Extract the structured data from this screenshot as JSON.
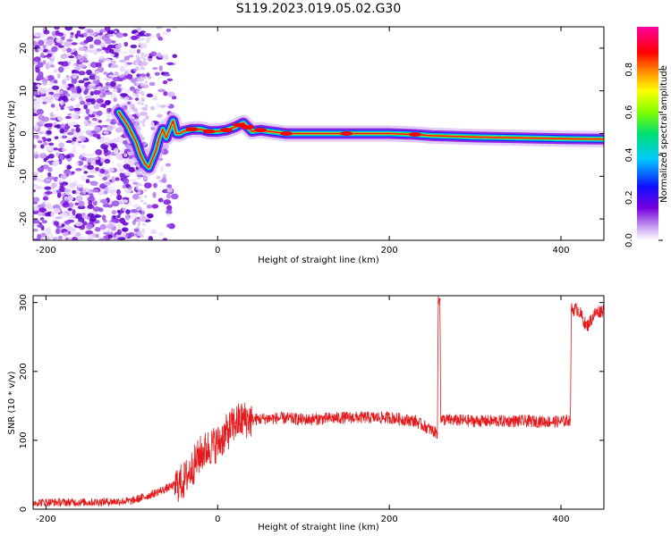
{
  "figure_title": "S119.2023.019.05.02.G30",
  "chart_data": [
    {
      "type": "heatmap",
      "title": "",
      "xlabel": "Height of straight line (km)",
      "ylabel": "Frequency (Hz)",
      "xlim": [
        -215,
        450
      ],
      "ylim": [
        -25,
        25
      ],
      "x_ticks": [
        "-200",
        "0",
        "200",
        "400"
      ],
      "x_tick_values": [
        -200,
        0,
        200,
        400
      ],
      "y_ticks": [
        "20",
        "10",
        "0",
        "-10",
        "-20"
      ],
      "y_tick_values": [
        20,
        10,
        0,
        -10,
        -20
      ],
      "colorbar": {
        "label": "Normalized spectral amplitude",
        "range": [
          0,
          1
        ],
        "ticks": [
          "0.0",
          "0.2",
          "0.4",
          "0.6",
          "0.8"
        ],
        "tick_values": [
          0,
          0.2,
          0.4,
          0.6,
          0.8
        ],
        "colormap": "rainbow (white-purple-blue-cyan-green-yellow-red-magenta)"
      },
      "ridge": {
        "description": "dominant frequency vs height",
        "x": [
          -115,
          -105,
          -95,
          -90,
          -85,
          -80,
          -76,
          -72,
          -68,
          -64,
          -60,
          -56,
          -52,
          -48,
          -44,
          -40,
          -30,
          -20,
          -10,
          0,
          10,
          20,
          25,
          30,
          35,
          40,
          50,
          60,
          80,
          100,
          150,
          200,
          230,
          250,
          300,
          350,
          400,
          450
        ],
        "y": [
          5,
          2,
          -2,
          -5,
          -7,
          -8,
          -6,
          -4,
          -1,
          1,
          -1,
          1,
          3,
          0,
          0,
          0.5,
          1,
          1,
          0.5,
          0.5,
          0.8,
          1.5,
          2,
          2.5,
          1.5,
          0.5,
          0.8,
          0.5,
          0,
          0,
          0,
          0,
          -0.2,
          -0.5,
          -0.8,
          -1,
          -1.2,
          -1.3
        ]
      },
      "noise_region_x": [
        -215,
        -90
      ]
    },
    {
      "type": "line",
      "title": "",
      "xlabel": "Height of straight line (km)",
      "ylabel": "SNR (10 * v/v)",
      "xlim": [
        -215,
        450
      ],
      "ylim": [
        0,
        310
      ],
      "x_ticks": [
        "-200",
        "0",
        "200",
        "400"
      ],
      "x_tick_values": [
        -200,
        0,
        200,
        400
      ],
      "y_ticks": [
        "0",
        "100",
        "200",
        "300"
      ],
      "y_tick_values": [
        0,
        100,
        200,
        300
      ],
      "color": "#e41a1c",
      "series": [
        {
          "x": [
            -215,
            -150,
            -100,
            -80,
            -60,
            -40,
            -30,
            -20,
            -10,
            0,
            10,
            20,
            30,
            40,
            60,
            80,
            100,
            150,
            200,
            230,
            256,
            257,
            259,
            260,
            262,
            300,
            350,
            400,
            411,
            412,
            420,
            430,
            440,
            450
          ],
          "y": [
            10,
            10,
            12,
            20,
            30,
            40,
            60,
            80,
            90,
            95,
            110,
            125,
            130,
            130,
            132,
            132,
            130,
            133,
            133,
            128,
            110,
            300,
            305,
            130,
            130,
            128,
            128,
            127,
            130,
            290,
            290,
            265,
            285,
            290
          ]
        }
      ]
    }
  ]
}
